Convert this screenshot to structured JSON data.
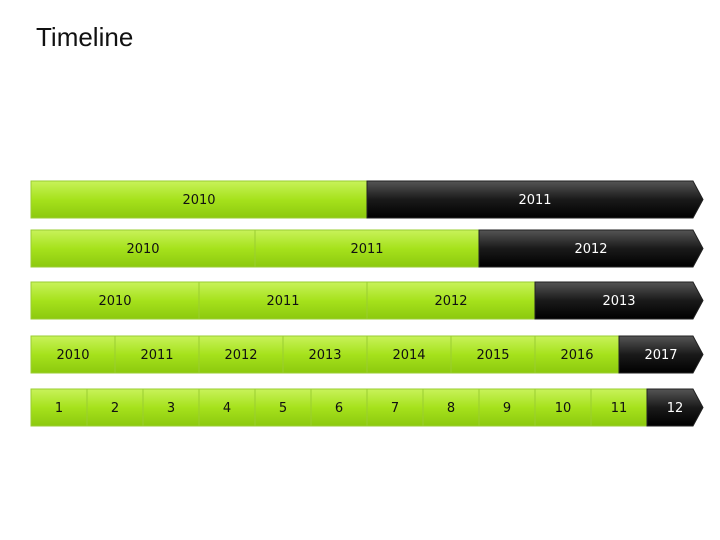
{
  "title": "Timeline",
  "rows": [
    {
      "segments": [
        "2010",
        "2011"
      ]
    },
    {
      "segments": [
        "2010",
        "2011",
        "2012"
      ]
    },
    {
      "segments": [
        "2010",
        "2011",
        "2012",
        "2013"
      ]
    },
    {
      "segments": [
        "2010",
        "2011",
        "2012",
        "2013",
        "2014",
        "2015",
        "2016",
        "2017"
      ]
    },
    {
      "segments": [
        "1",
        "2",
        "3",
        "4",
        "5",
        "6",
        "7",
        "8",
        "9",
        "10",
        "11",
        "12"
      ]
    }
  ]
}
